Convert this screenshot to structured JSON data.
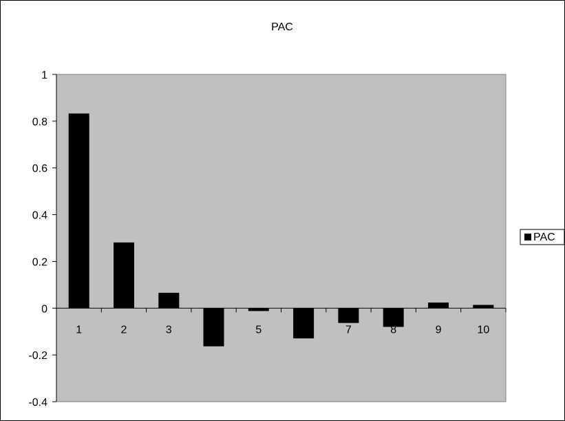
{
  "chart_data": {
    "type": "bar",
    "title": "PAC",
    "xlabel": "",
    "ylabel": "",
    "categories": [
      "1",
      "2",
      "3",
      "4",
      "5",
      "6",
      "7",
      "8",
      "9",
      "10"
    ],
    "series": [
      {
        "name": "PAC",
        "values": [
          0.833,
          0.281,
          0.066,
          -0.163,
          -0.012,
          -0.129,
          -0.063,
          -0.08,
          0.024,
          0.014
        ]
      }
    ],
    "ylim": [
      -0.4,
      1
    ],
    "yticks": [
      "-0.4",
      "-0.2",
      "0",
      "0.2",
      "0.4",
      "0.6",
      "0.8",
      "1"
    ],
    "visible_category_labels": [
      "1",
      "2",
      "3",
      "5",
      "7",
      "8",
      "9",
      "10"
    ],
    "grid": false,
    "legend_position": "right",
    "colors": {
      "plot_area": "#c0c0c0",
      "bar": "#000000",
      "frame": "#000000",
      "background": "#ffffff"
    }
  }
}
